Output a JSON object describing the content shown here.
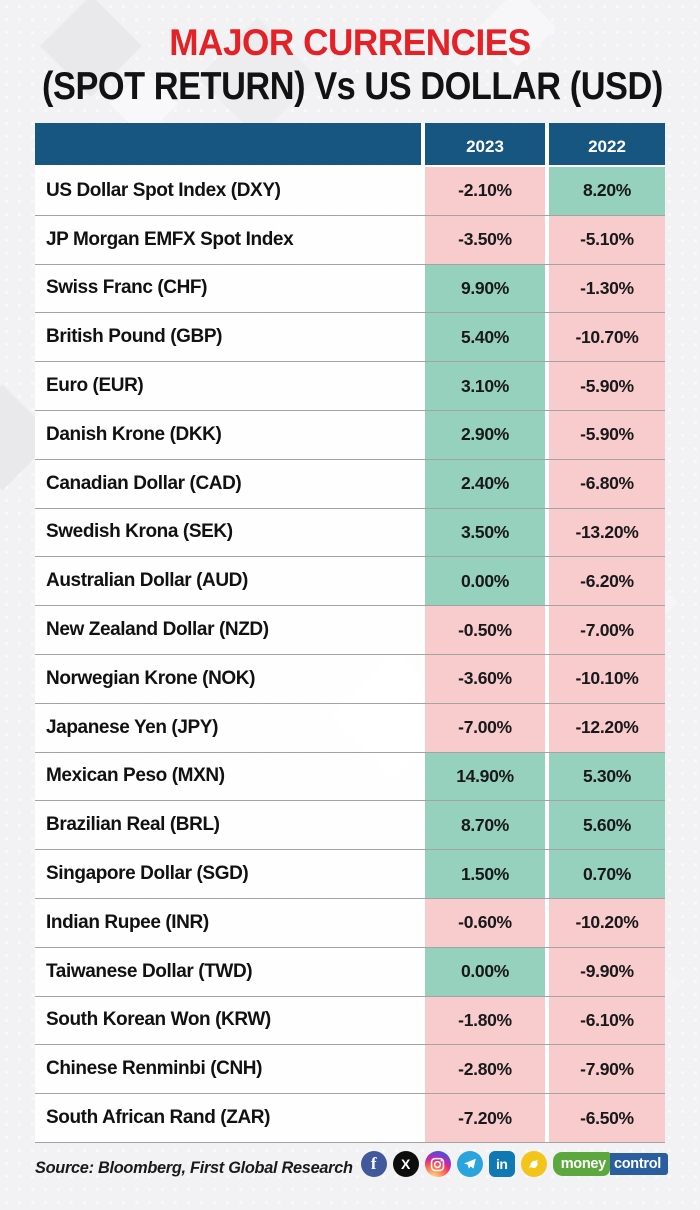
{
  "title": {
    "line1": "MAJOR CURRENCIES",
    "line2": "(SPOT RETURN) Vs US DOLLAR (USD)"
  },
  "table": {
    "headers": {
      "name": "",
      "year1": "2023",
      "year2": "2022"
    },
    "rows": [
      {
        "name": "US Dollar Spot Index (DXY)",
        "y2023": "-2.10%",
        "y2022": "8.20%"
      },
      {
        "name": "JP Morgan EMFX Spot Index",
        "y2023": "-3.50%",
        "y2022": "-5.10%"
      },
      {
        "name": "Swiss Franc (CHF)",
        "y2023": "9.90%",
        "y2022": "-1.30%"
      },
      {
        "name": "British Pound (GBP)",
        "y2023": "5.40%",
        "y2022": "-10.70%"
      },
      {
        "name": "Euro (EUR)",
        "y2023": "3.10%",
        "y2022": "-5.90%"
      },
      {
        "name": "Danish Krone (DKK)",
        "y2023": "2.90%",
        "y2022": "-5.90%"
      },
      {
        "name": "Canadian Dollar (CAD)",
        "y2023": "2.40%",
        "y2022": "-6.80%"
      },
      {
        "name": "Swedish Krona (SEK)",
        "y2023": "3.50%",
        "y2022": "-13.20%"
      },
      {
        "name": "Australian Dollar (AUD)",
        "y2023": "0.00%",
        "y2022": "-6.20%"
      },
      {
        "name": "New Zealand Dollar (NZD)",
        "y2023": "-0.50%",
        "y2022": "-7.00%"
      },
      {
        "name": "Norwegian Krone (NOK)",
        "y2023": "-3.60%",
        "y2022": "-10.10%"
      },
      {
        "name": "Japanese Yen (JPY)",
        "y2023": "-7.00%",
        "y2022": "-12.20%"
      },
      {
        "name": "Mexican Peso (MXN)",
        "y2023": "14.90%",
        "y2022": "5.30%"
      },
      {
        "name": "Brazilian Real (BRL)",
        "y2023": "8.70%",
        "y2022": "5.60%"
      },
      {
        "name": "Singapore Dollar (SGD)",
        "y2023": "1.50%",
        "y2022": "0.70%"
      },
      {
        "name": "Indian Rupee (INR)",
        "y2023": "-0.60%",
        "y2022": "-10.20%"
      },
      {
        "name": "Taiwanese Dollar (TWD)",
        "y2023": "0.00%",
        "y2022": "-9.90%"
      },
      {
        "name": "South Korean Won (KRW)",
        "y2023": "-1.80%",
        "y2022": "-6.10%"
      },
      {
        "name": "Chinese Renminbi (CNH)",
        "y2023": "-2.80%",
        "y2022": "-7.90%"
      },
      {
        "name": "South African Rand (ZAR)",
        "y2023": "-7.20%",
        "y2022": "-6.50%"
      }
    ]
  },
  "footer": {
    "source": "Source: Bloomberg, First Global Research",
    "social_icons": [
      "facebook-icon",
      "x-twitter-icon",
      "instagram-icon",
      "telegram-icon",
      "linkedin-icon",
      "koo-icon"
    ],
    "facebook_glyph": "f",
    "x_glyph": "X",
    "linkedin_glyph": "in",
    "brand": {
      "money": "money",
      "control": "control"
    }
  },
  "colors": {
    "title_red": "#e32127",
    "header_blue": "#165680",
    "positive_green": "#95d1bd",
    "negative_pink": "#f8cccd",
    "background": "#f2f2f4",
    "mc_green": "#5ca83f",
    "mc_blue": "#2a5e9e"
  },
  "chart_data": {
    "type": "table",
    "title": "MAJOR CURRENCIES (SPOT RETURN) Vs US DOLLAR (USD)",
    "columns": [
      "",
      "2023",
      "2022"
    ],
    "rows": [
      [
        "US Dollar Spot Index (DXY)",
        -2.1,
        8.2
      ],
      [
        "JP Morgan EMFX Spot Index",
        -3.5,
        -5.1
      ],
      [
        "Swiss Franc (CHF)",
        9.9,
        -1.3
      ],
      [
        "British Pound (GBP)",
        5.4,
        -10.7
      ],
      [
        "Euro (EUR)",
        3.1,
        -5.9
      ],
      [
        "Danish Krone (DKK)",
        2.9,
        -5.9
      ],
      [
        "Canadian Dollar (CAD)",
        2.4,
        -6.8
      ],
      [
        "Swedish Krona (SEK)",
        3.5,
        -13.2
      ],
      [
        "Australian Dollar (AUD)",
        0.0,
        -6.2
      ],
      [
        "New Zealand Dollar (NZD)",
        -0.5,
        -7.0
      ],
      [
        "Norwegian Krone (NOK)",
        -3.6,
        -10.1
      ],
      [
        "Japanese Yen (JPY)",
        -7.0,
        -12.2
      ],
      [
        "Mexican Peso (MXN)",
        14.9,
        5.3
      ],
      [
        "Brazilian Real (BRL)",
        8.7,
        5.6
      ],
      [
        "Singapore Dollar (SGD)",
        1.5,
        0.7
      ],
      [
        "Indian Rupee (INR)",
        -0.6,
        -10.2
      ],
      [
        "Taiwanese Dollar (TWD)",
        0.0,
        -9.9
      ],
      [
        "South Korean Won (KRW)",
        -1.8,
        -6.1
      ],
      [
        "Chinese Renminbi (CNH)",
        -2.8,
        -7.9
      ],
      [
        "South African Rand (ZAR)",
        -7.2,
        -6.5
      ]
    ],
    "value_unit": "%",
    "cell_color_rule": "negative values shaded pink (#f8cccd), zero/positive shaded green (#95d1bd)"
  }
}
